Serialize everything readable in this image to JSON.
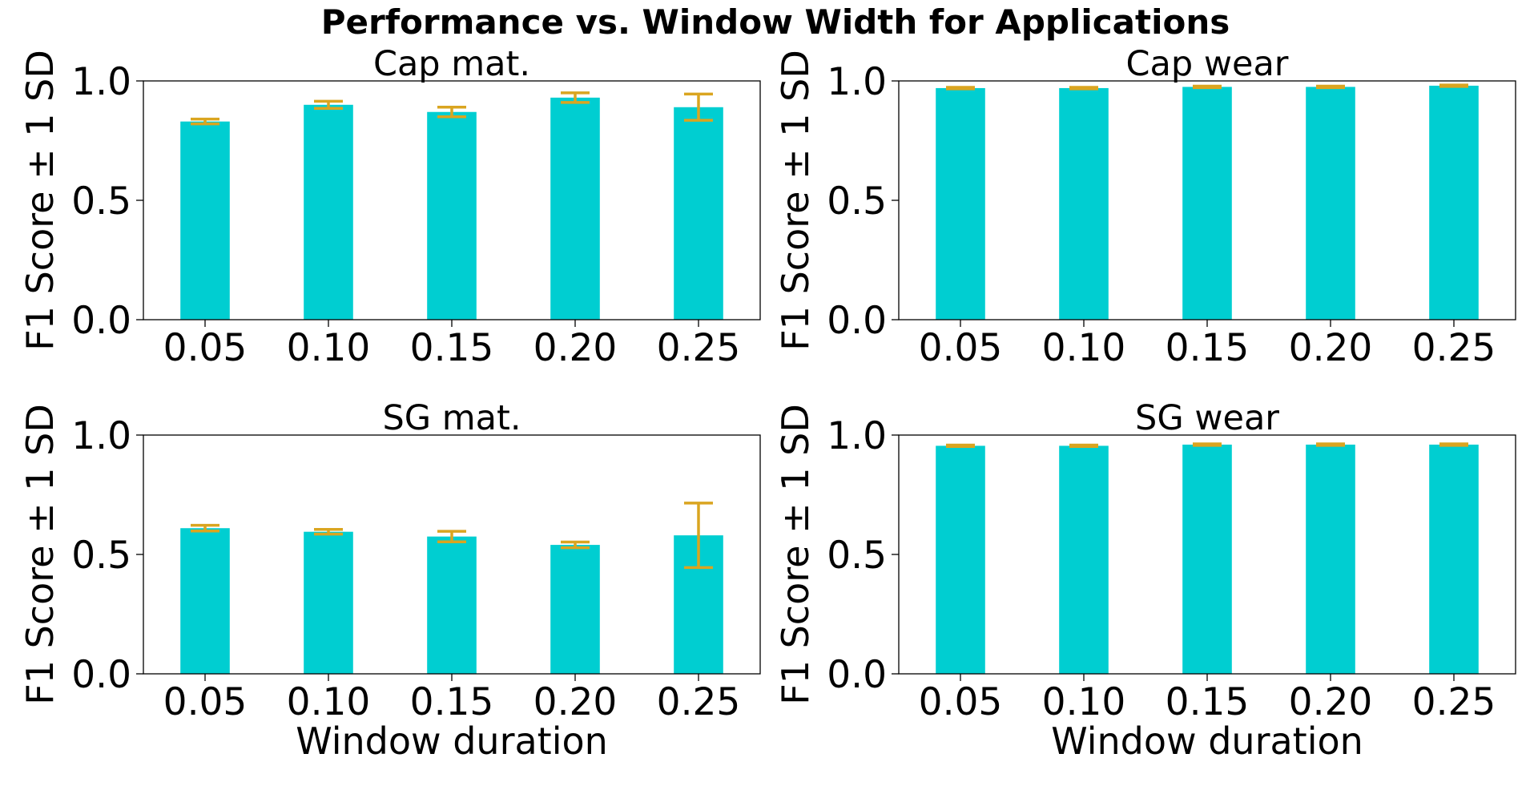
{
  "figure": {
    "title": "Performance vs. Window Width for Applications"
  },
  "colors": {
    "bar": "#00CED1",
    "error": "#DAA520",
    "axis": "#000000"
  },
  "chart_data": [
    {
      "type": "bar",
      "title": "Cap mat.",
      "xlabel": "",
      "ylabel": "F1 Score ± 1 SD",
      "categories": [
        "0.05",
        "0.10",
        "0.15",
        "0.20",
        "0.25"
      ],
      "values": [
        0.83,
        0.9,
        0.87,
        0.93,
        0.89
      ],
      "errors": [
        0.01,
        0.015,
        0.02,
        0.02,
        0.055
      ],
      "ylim": [
        0,
        1.0
      ],
      "yticks": [
        "0.0",
        "0.5",
        "1.0"
      ],
      "grid": false
    },
    {
      "type": "bar",
      "title": "Cap wear",
      "xlabel": "",
      "ylabel": "F1 Score ± 1 SD",
      "categories": [
        "0.05",
        "0.10",
        "0.15",
        "0.20",
        "0.25"
      ],
      "values": [
        0.97,
        0.97,
        0.975,
        0.975,
        0.98
      ],
      "errors": [
        0.003,
        0.003,
        0.003,
        0.003,
        0.003
      ],
      "ylim": [
        0,
        1.0
      ],
      "yticks": [
        "0.0",
        "0.5",
        "1.0"
      ],
      "grid": false
    },
    {
      "type": "bar",
      "title": "SG mat.",
      "xlabel": "Window duration",
      "ylabel": "F1 Score ± 1 SD",
      "categories": [
        "0.05",
        "0.10",
        "0.15",
        "0.20",
        "0.25"
      ],
      "values": [
        0.61,
        0.595,
        0.575,
        0.54,
        0.58
      ],
      "errors": [
        0.012,
        0.01,
        0.022,
        0.012,
        0.135
      ],
      "ylim": [
        0,
        1.0
      ],
      "yticks": [
        "0.0",
        "0.5",
        "1.0"
      ],
      "grid": false
    },
    {
      "type": "bar",
      "title": "SG wear",
      "xlabel": "Window duration",
      "ylabel": "F1 Score ± 1 SD",
      "categories": [
        "0.05",
        "0.10",
        "0.15",
        "0.20",
        "0.25"
      ],
      "values": [
        0.955,
        0.955,
        0.96,
        0.96,
        0.96
      ],
      "errors": [
        0.003,
        0.003,
        0.003,
        0.003,
        0.003
      ],
      "ylim": [
        0,
        1.0
      ],
      "yticks": [
        "0.0",
        "0.5",
        "1.0"
      ],
      "grid": false
    }
  ]
}
